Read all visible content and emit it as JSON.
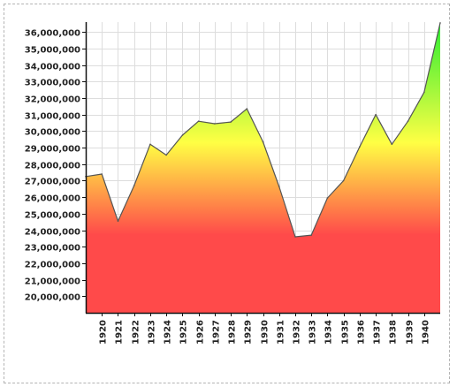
{
  "colors": {
    "grid": "#dddddd",
    "axis": "#111111",
    "line": "#555555",
    "gradient_top": "#33ee33",
    "gradient_mid": "#ffff44",
    "gradient_bottom": "#ff4a4a"
  },
  "chart_data": {
    "type": "area",
    "title": "",
    "xlabel": "",
    "ylabel": "",
    "x": [
      1919,
      1920,
      1921,
      1922,
      1923,
      1924,
      1925,
      1926,
      1927,
      1928,
      1929,
      1930,
      1931,
      1932,
      1933,
      1934,
      1935,
      1936,
      1937,
      1938,
      1939,
      1940,
      1941
    ],
    "x_tick_labels": [
      "1920",
      "1921",
      "1922",
      "1923",
      "1924",
      "1925",
      "1926",
      "1927",
      "1928",
      "1929",
      "1930",
      "1931",
      "1932",
      "1933",
      "1934",
      "1935",
      "1936",
      "1937",
      "1938",
      "1939",
      "1940"
    ],
    "y_tick_values": [
      20000000,
      21000000,
      22000000,
      23000000,
      24000000,
      25000000,
      26000000,
      27000000,
      28000000,
      29000000,
      30000000,
      31000000,
      32000000,
      33000000,
      34000000,
      35000000,
      36000000
    ],
    "y_tick_labels": [
      "20,000,000",
      "21,000,000",
      "22,000,000",
      "23,000,000",
      "24,000,000",
      "25,000,000",
      "26,000,000",
      "27,000,000",
      "28,000,000",
      "29,000,000",
      "30,000,000",
      "31,000,000",
      "32,000,000",
      "33,000,000",
      "34,000,000",
      "35,000,000",
      "36,000,000"
    ],
    "ylim": [
      19000000,
      36600000
    ],
    "grid": true,
    "legend": "none",
    "series": [
      {
        "values": [
          27250000,
          27400000,
          24550000,
          26700000,
          29200000,
          28550000,
          29750000,
          30600000,
          30450000,
          30550000,
          31350000,
          29350000,
          26650000,
          23600000,
          23700000,
          25950000,
          27000000,
          29050000,
          31000000,
          29200000,
          30600000,
          32350000,
          36550000
        ]
      }
    ]
  }
}
